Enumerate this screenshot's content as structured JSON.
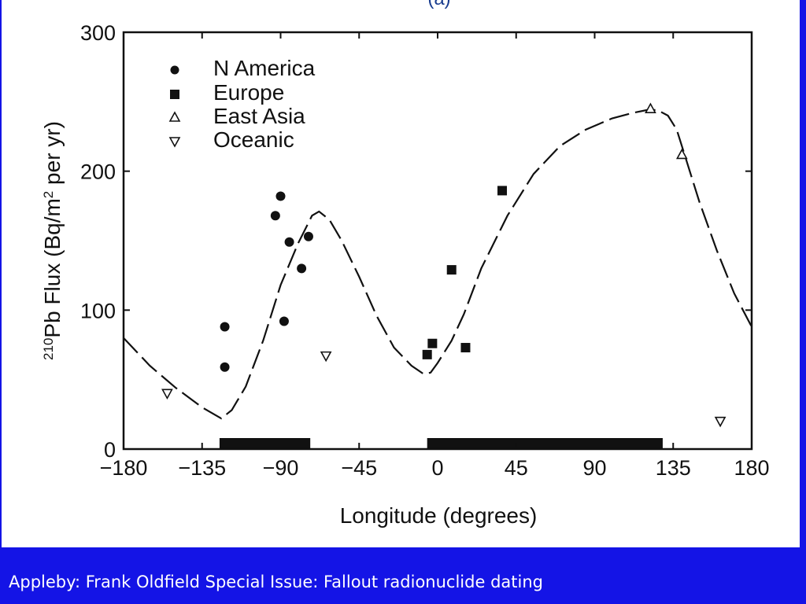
{
  "slide": {
    "caption": "Appleby: Frank Oldfield Special Issue: Fallout radionuclide dating",
    "background_color": "#1414e6",
    "panel_top_label": "(a)"
  },
  "chart_data": {
    "type": "scatter",
    "xlabel": "Longitude (degrees)",
    "ylabel_sup": "210",
    "ylabel_main": "Pb Flux (Bq/m",
    "ylabel_sup2": "2",
    "ylabel_tail": " per yr)",
    "xlim": [
      -180,
      180
    ],
    "ylim": [
      0,
      300
    ],
    "xticks": [
      -180,
      -135,
      -90,
      -45,
      0,
      45,
      90,
      135,
      180
    ],
    "xtick_labels": [
      "−180",
      "−135",
      "−90",
      "−45",
      "0",
      "45",
      "90",
      "135",
      "180"
    ],
    "yticks": [
      0,
      100,
      200,
      300
    ],
    "ytick_labels": [
      "0",
      "100",
      "200",
      "300"
    ],
    "legend_position": "top-left",
    "series": [
      {
        "name": "N America",
        "marker": "circle",
        "points": [
          [
            -122,
            59
          ],
          [
            -122,
            88
          ],
          [
            -93,
            168
          ],
          [
            -90,
            182
          ],
          [
            -88,
            92
          ],
          [
            -85,
            149
          ],
          [
            -78,
            130
          ],
          [
            -74,
            153
          ]
        ]
      },
      {
        "name": "Europe",
        "marker": "square",
        "points": [
          [
            -6,
            68
          ],
          [
            -3,
            76
          ],
          [
            8,
            129
          ],
          [
            16,
            73
          ],
          [
            37,
            186
          ]
        ]
      },
      {
        "name": "East Asia",
        "marker": "triangle-up",
        "points": [
          [
            122,
            245
          ],
          [
            140,
            212
          ]
        ]
      },
      {
        "name": "Oceanic",
        "marker": "triangle-down",
        "points": [
          [
            -155,
            40
          ],
          [
            -64,
            67
          ],
          [
            162,
            20
          ]
        ]
      }
    ],
    "model_curve": {
      "style": "long-dash",
      "points": [
        [
          -180,
          80
        ],
        [
          -165,
          60
        ],
        [
          -150,
          44
        ],
        [
          -135,
          30
        ],
        [
          -124,
          22
        ],
        [
          -118,
          28
        ],
        [
          -110,
          45
        ],
        [
          -100,
          78
        ],
        [
          -90,
          118
        ],
        [
          -80,
          148
        ],
        [
          -72,
          168
        ],
        [
          -68,
          171
        ],
        [
          -62,
          165
        ],
        [
          -55,
          150
        ],
        [
          -45,
          124
        ],
        [
          -35,
          96
        ],
        [
          -25,
          73
        ],
        [
          -15,
          60
        ],
        [
          -8,
          54
        ],
        [
          -4,
          55
        ],
        [
          0,
          62
        ],
        [
          8,
          78
        ],
        [
          15,
          97
        ],
        [
          25,
          130
        ],
        [
          40,
          168
        ],
        [
          55,
          198
        ],
        [
          70,
          218
        ],
        [
          85,
          230
        ],
        [
          100,
          238
        ],
        [
          112,
          242
        ],
        [
          120,
          244
        ],
        [
          126,
          244
        ],
        [
          132,
          240
        ],
        [
          137,
          230
        ],
        [
          142,
          210
        ],
        [
          150,
          178
        ],
        [
          160,
          143
        ],
        [
          170,
          112
        ],
        [
          180,
          88
        ]
      ]
    },
    "bars": [
      {
        "x0": -125,
        "x1": -73
      },
      {
        "x0": -6,
        "x1": 129
      }
    ]
  }
}
